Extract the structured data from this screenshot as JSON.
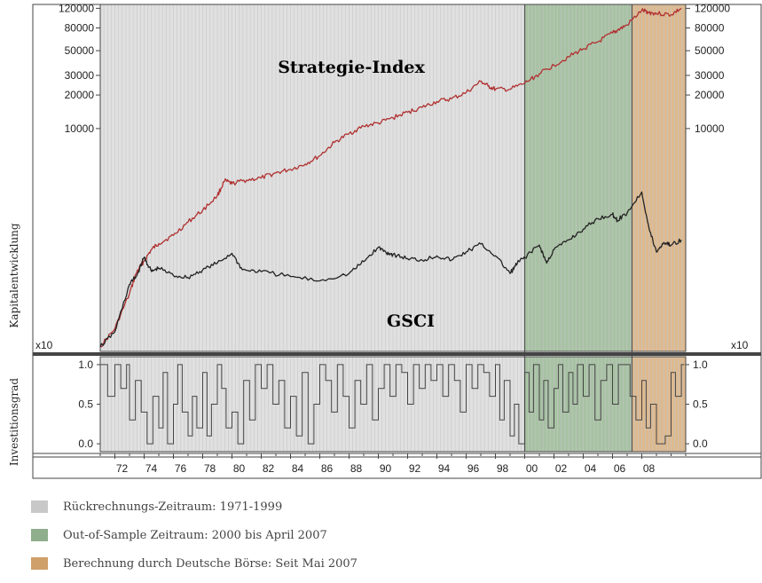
{
  "chart_data": [
    {
      "type": "line",
      "ylabel": "Kapitalentwicklung",
      "yscale": "log",
      "y_ticks": [
        10000,
        20000,
        30000,
        50000,
        80000,
        120000
      ],
      "y_tick_labels": [
        "10000",
        "20000",
        "30000",
        "50000",
        "80000",
        "120000"
      ],
      "ylim": [
        100,
        130000
      ],
      "xlim": [
        1971,
        2011
      ],
      "multiplier_label_left": "x10",
      "multiplier_label_right": "x10",
      "annotations": [
        {
          "text": "Strategie-Index",
          "series": "Strategie-Index"
        },
        {
          "text": "GSCI",
          "series": "GSCI"
        }
      ],
      "series": [
        {
          "name": "Strategie-Index",
          "color": "#b03030",
          "x": [
            1971.0,
            1972.0,
            1973.0,
            1973.5,
            1974.0,
            1974.5,
            1975.0,
            1976.0,
            1977.0,
            1978.0,
            1979.0,
            1979.5,
            1980.0,
            1981.0,
            1982.0,
            1983.0,
            1984.0,
            1985.0,
            1986.0,
            1987.0,
            1988.0,
            1989.0,
            1990.0,
            1991.0,
            1992.0,
            1993.0,
            1994.0,
            1995.0,
            1996.0,
            1997.0,
            1997.5,
            1998.0,
            1999.0,
            2000.0,
            2001.0,
            2002.0,
            2003.0,
            2004.0,
            2005.0,
            2006.0,
            2006.33,
            2007.0,
            2008.0,
            2008.5,
            2009.0,
            2010.0,
            2010.7
          ],
          "y": [
            110,
            160,
            330,
            520,
            650,
            820,
            930,
            1100,
            1450,
            1850,
            2500,
            3400,
            3200,
            3450,
            3600,
            4000,
            4300,
            4800,
            5700,
            7500,
            9000,
            10500,
            11200,
            12500,
            14000,
            15500,
            17500,
            18500,
            21000,
            26500,
            24000,
            22500,
            22500,
            25500,
            31000,
            37000,
            44000,
            52000,
            60000,
            72000,
            76000,
            85000,
            115000,
            110000,
            108000,
            105000,
            120000
          ]
        },
        {
          "name": "GSCI",
          "color": "#222222",
          "x": [
            1971.0,
            1972.0,
            1973.0,
            1973.5,
            1974.0,
            1974.5,
            1975.0,
            1976.0,
            1977.0,
            1978.0,
            1979.0,
            1980.0,
            1980.7,
            1982.0,
            1984.0,
            1986.0,
            1988.0,
            1989.0,
            1990.0,
            1990.5,
            1991.0,
            1992.0,
            1993.0,
            1994.0,
            1995.0,
            1996.0,
            1997.0,
            1998.0,
            1999.0,
            1999.5,
            2000.0,
            2001.0,
            2001.5,
            2002.0,
            2003.0,
            2004.0,
            2005.0,
            2006.0,
            2006.33,
            2007.0,
            2008.0,
            2008.5,
            2009.0,
            2009.5,
            2010.0,
            2010.7
          ],
          "y": [
            110,
            150,
            400,
            480,
            700,
            520,
            560,
            480,
            460,
            540,
            620,
            760,
            540,
            520,
            470,
            430,
            500,
            640,
            860,
            780,
            740,
            680,
            660,
            720,
            660,
            780,
            920,
            720,
            500,
            620,
            700,
            900,
            620,
            820,
            1000,
            1250,
            1550,
            1700,
            1500,
            1750,
            2700,
            1250,
            780,
            950,
            900,
            1000
          ]
        }
      ]
    },
    {
      "type": "line",
      "ylabel": "Investitionsgrad",
      "y_ticks": [
        0.0,
        0.5,
        1.0
      ],
      "y_tick_labels": [
        "0.0",
        "0.5",
        "1.0"
      ],
      "ylim": [
        -0.1,
        1.1
      ],
      "xlim": [
        1971,
        2011
      ],
      "series": [
        {
          "name": "Investitionsgrad",
          "color": "#444444",
          "x": [
            1971.0,
            1971.5,
            1972.0,
            1972.4,
            1972.8,
            1973.0,
            1973.4,
            1973.8,
            1974.2,
            1974.6,
            1975.0,
            1975.3,
            1975.6,
            1976.0,
            1976.3,
            1976.6,
            1977.0,
            1977.3,
            1977.6,
            1978.0,
            1978.3,
            1978.6,
            1979.0,
            1979.3,
            1979.6,
            1980.0,
            1980.4,
            1980.8,
            1981.2,
            1981.6,
            1982.0,
            1982.4,
            1982.8,
            1983.2,
            1983.6,
            1984.0,
            1984.4,
            1984.8,
            1985.2,
            1985.6,
            1986.0,
            1986.4,
            1986.8,
            1987.2,
            1987.6,
            1988.0,
            1988.4,
            1988.8,
            1989.2,
            1989.6,
            1990.0,
            1990.4,
            1990.8,
            1991.2,
            1991.6,
            1992.0,
            1992.4,
            1992.8,
            1993.2,
            1993.6,
            1994.0,
            1994.4,
            1994.8,
            1995.2,
            1995.6,
            1996.0,
            1996.4,
            1996.8,
            1997.2,
            1997.6,
            1998.0,
            1998.3,
            1998.6,
            1999.0,
            1999.3,
            1999.6,
            2000.0,
            2000.3,
            2000.6,
            2001.0,
            2001.3,
            2001.6,
            2002.0,
            2002.3,
            2002.6,
            2003.0,
            2003.3,
            2003.6,
            2004.0,
            2004.4,
            2004.8,
            2005.2,
            2005.6,
            2006.0,
            2006.4,
            2006.8,
            2007.2,
            2007.6,
            2008.0,
            2008.3,
            2008.6,
            2009.0,
            2009.3,
            2009.6,
            2010.0,
            2010.3,
            2010.7
          ],
          "y": [
            1.0,
            0.6,
            1.0,
            0.7,
            1.0,
            0.3,
            0.8,
            0.4,
            0.0,
            0.6,
            0.2,
            0.9,
            0.0,
            0.5,
            1.0,
            0.4,
            0.1,
            0.6,
            0.2,
            0.9,
            0.1,
            0.5,
            1.0,
            0.7,
            0.2,
            0.4,
            0.0,
            0.8,
            0.3,
            1.0,
            0.7,
            1.0,
            0.5,
            0.8,
            0.2,
            0.6,
            0.1,
            0.9,
            0.0,
            0.5,
            1.0,
            0.8,
            0.4,
            1.0,
            0.6,
            0.2,
            0.8,
            0.5,
            1.0,
            0.3,
            0.7,
            1.0,
            0.6,
            1.0,
            0.9,
            0.5,
            1.0,
            0.7,
            1.0,
            0.8,
            1.0,
            0.6,
            1.0,
            0.8,
            0.4,
            1.0,
            0.7,
            1.0,
            0.9,
            0.6,
            1.0,
            0.3,
            0.8,
            0.1,
            0.5,
            0.0,
            0.9,
            0.4,
            1.0,
            0.3,
            0.8,
            0.2,
            0.7,
            1.0,
            0.4,
            0.9,
            0.5,
            1.0,
            0.6,
            1.0,
            0.3,
            0.8,
            1.0,
            0.5,
            1.0,
            1.0,
            0.6,
            0.3,
            0.8,
            0.2,
            0.5,
            0.0,
            0.0,
            0.1,
            0.9,
            0.6,
            1.0
          ]
        }
      ]
    }
  ],
  "x_axis": {
    "ticks": [
      1972,
      1974,
      1976,
      1978,
      1980,
      1982,
      1984,
      1986,
      1988,
      1990,
      1992,
      1994,
      1996,
      1998,
      2000,
      2002,
      2004,
      2006,
      2008
    ],
    "tick_labels": [
      "72",
      "74",
      "76",
      "78",
      "80",
      "82",
      "84",
      "86",
      "88",
      "90",
      "92",
      "94",
      "96",
      "98",
      "00",
      "02",
      "04",
      "06",
      "08"
    ]
  },
  "periods": [
    {
      "start": 1971.0,
      "end": 2000.0,
      "color": "#e0e0e0",
      "label": "Rückrechnungs-Zeitraum: 1971-1999"
    },
    {
      "start": 2000.0,
      "end": 2007.33,
      "color": "#a7c2a3",
      "label": "Out-of-Sample Zeitraum: 2000 bis April 2007"
    },
    {
      "start": 2007.33,
      "end": 2011.0,
      "color": "#ddb98f",
      "label": "Berechnung durch Deutsche Börse: Seit Mai 2007"
    }
  ],
  "legend": {
    "items": [
      {
        "label": "Rückrechnungs-Zeitraum: 1971-1999",
        "color": "#c8c8c8"
      },
      {
        "label": "Out-of-Sample Zeitraum: 2000 bis April 2007",
        "color": "#8fae8c"
      },
      {
        "label": "Berechnung durch Deutsche Börse: Seit Mai 2007",
        "color": "#cfa06a"
      }
    ]
  }
}
